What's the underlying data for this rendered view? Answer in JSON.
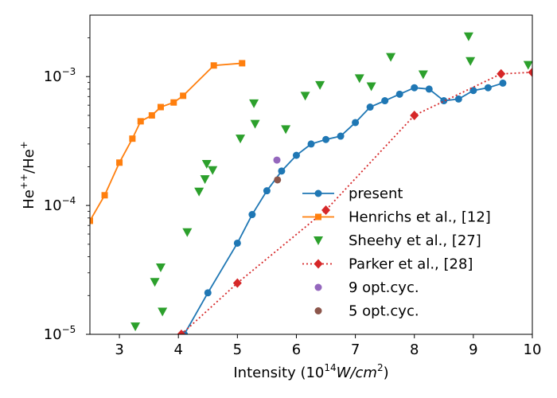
{
  "chart_data": {
    "type": "scatter",
    "xlabel": "Intensity (10",
    "xlabel_sup": "14",
    "xlabel_unit": "W/cm",
    "xlabel_unit_sup": "2",
    "xlabel_close": ")",
    "ylabel": "He",
    "ylabel_sup_num": "++",
    "ylabel_slash": "/He",
    "ylabel_sup_den": "+",
    "xlim": [
      2.5,
      10
    ],
    "ylim": [
      1e-05,
      0.003
    ],
    "yscale": "log",
    "grid": false,
    "legend_position": "lower-right",
    "x_ticks": [
      {
        "value": 3,
        "label": "3"
      },
      {
        "value": 4,
        "label": "4"
      },
      {
        "value": 5,
        "label": "5"
      },
      {
        "value": 6,
        "label": "6"
      },
      {
        "value": 7,
        "label": "7"
      },
      {
        "value": 8,
        "label": "8"
      },
      {
        "value": 9,
        "label": "9"
      },
      {
        "value": 10,
        "label": "10"
      }
    ],
    "y_ticks": [
      {
        "value": 1e-05,
        "base": "10",
        "exp": "−5"
      },
      {
        "value": 0.0001,
        "base": "10",
        "exp": "−4"
      },
      {
        "value": 0.001,
        "base": "10",
        "exp": "−3"
      }
    ],
    "series": [
      {
        "name": "present",
        "color": "#1f77b4",
        "marker": "circle",
        "line": "solid",
        "x": [
          4.1,
          4.5,
          5.0,
          5.25,
          5.5,
          5.75,
          6.0,
          6.25,
          6.5,
          6.75,
          7.0,
          7.25,
          7.5,
          7.75,
          8.0,
          8.25,
          8.5,
          8.75,
          9.0,
          9.25,
          9.5
        ],
        "y": [
          1e-05,
          2.1e-05,
          5.1e-05,
          8.5e-05,
          0.00013,
          0.000185,
          0.000245,
          0.0003,
          0.000325,
          0.000345,
          0.00044,
          0.00058,
          0.00065,
          0.00073,
          0.00082,
          0.0008,
          0.00065,
          0.00067,
          0.00078,
          0.00082,
          0.00089
        ]
      },
      {
        "name": "Henrichs et al., [12]",
        "color": "#ff7f0e",
        "marker": "square",
        "line": "solid",
        "x": [
          2.5,
          2.75,
          3.0,
          3.22,
          3.36,
          3.55,
          3.7,
          3.92,
          4.08,
          4.6,
          5.08
        ],
        "y": [
          7.6e-05,
          0.00012,
          0.000215,
          0.00033,
          0.00045,
          0.0005,
          0.00058,
          0.00063,
          0.00071,
          0.00122,
          0.00127
        ]
      },
      {
        "name": "Sheehy et al., [27]",
        "color": "#2ca02c",
        "marker": "triangle-down",
        "line": "none",
        "x": [
          3.27,
          3.6,
          3.7,
          3.73,
          4.15,
          4.35,
          4.45,
          4.48,
          4.58,
          5.05,
          5.28,
          5.3,
          5.82,
          6.15,
          6.4,
          7.07,
          7.27,
          7.6,
          8.15,
          8.92,
          8.95,
          9.93
        ],
        "y": [
          1.15e-05,
          2.55e-05,
          3.3e-05,
          1.5e-05,
          6.2e-05,
          0.000128,
          0.00016,
          0.00021,
          0.000188,
          0.00033,
          0.00062,
          0.00043,
          0.00039,
          0.00071,
          0.00086,
          0.00097,
          0.00084,
          0.00142,
          0.00104,
          0.00205,
          0.00132,
          0.00123
        ]
      },
      {
        "name": "Parker et al., [28]",
        "color": "#d62728",
        "marker": "diamond",
        "line": "dotted",
        "x": [
          4.05,
          5.0,
          6.5,
          8.0,
          9.47,
          10.0
        ],
        "y": [
          1e-05,
          2.5e-05,
          9.2e-05,
          0.0005,
          0.00105,
          0.00108
        ]
      },
      {
        "name": "9 opt.cyc.",
        "color": "#9467bd",
        "marker": "circle",
        "line": "none",
        "x": [
          5.67
        ],
        "y": [
          0.000225
        ]
      },
      {
        "name": "5 opt.cyc.",
        "color": "#8c564b",
        "marker": "circle",
        "line": "none",
        "x": [
          5.68
        ],
        "y": [
          0.000158
        ]
      }
    ]
  }
}
